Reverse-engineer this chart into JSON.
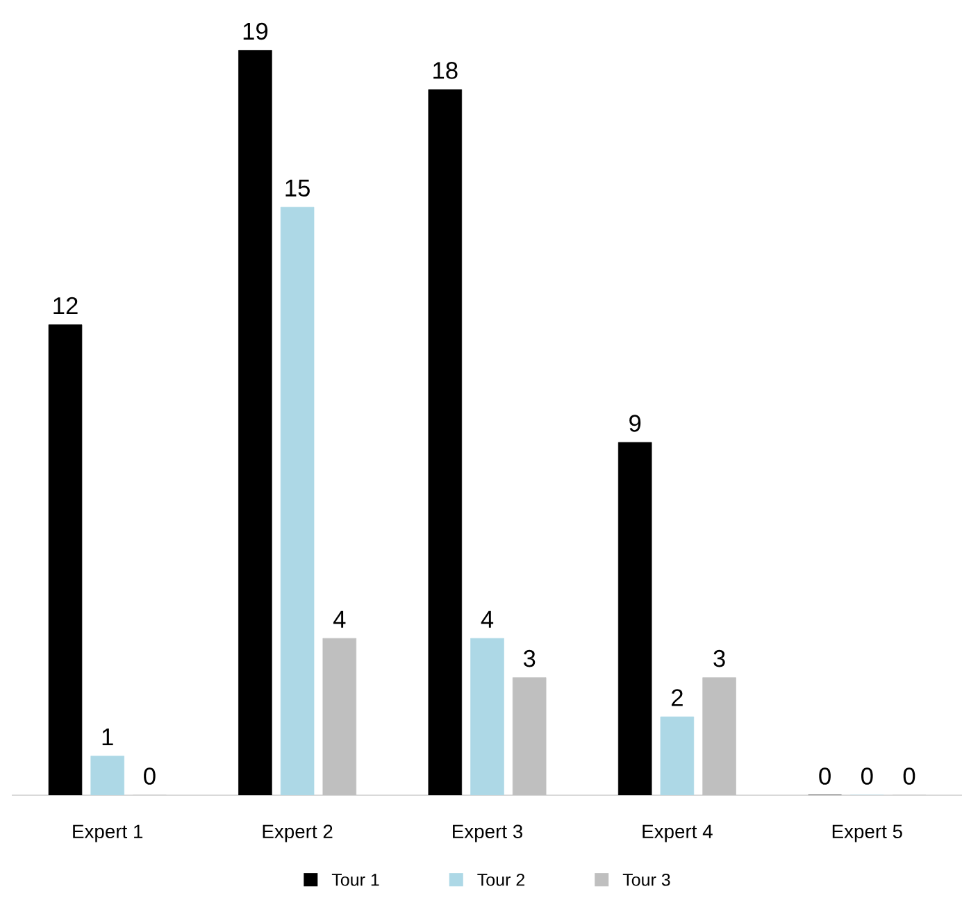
{
  "chart_data": {
    "type": "bar",
    "categories": [
      "Expert 1",
      "Expert 2",
      "Expert 3",
      "Expert 4",
      "Expert 5"
    ],
    "series": [
      {
        "name": "Tour 1",
        "color": "#000000",
        "values": [
          12,
          19,
          18,
          9,
          0
        ]
      },
      {
        "name": "Tour 2",
        "color": "#add8e6",
        "values": [
          1,
          15,
          4,
          2,
          0
        ]
      },
      {
        "name": "Tour 3",
        "color": "#bfbfbf",
        "values": [
          0,
          4,
          3,
          3,
          0
        ]
      }
    ],
    "data_labels": true,
    "legend": "bottom",
    "tick_labels": "x"
  }
}
